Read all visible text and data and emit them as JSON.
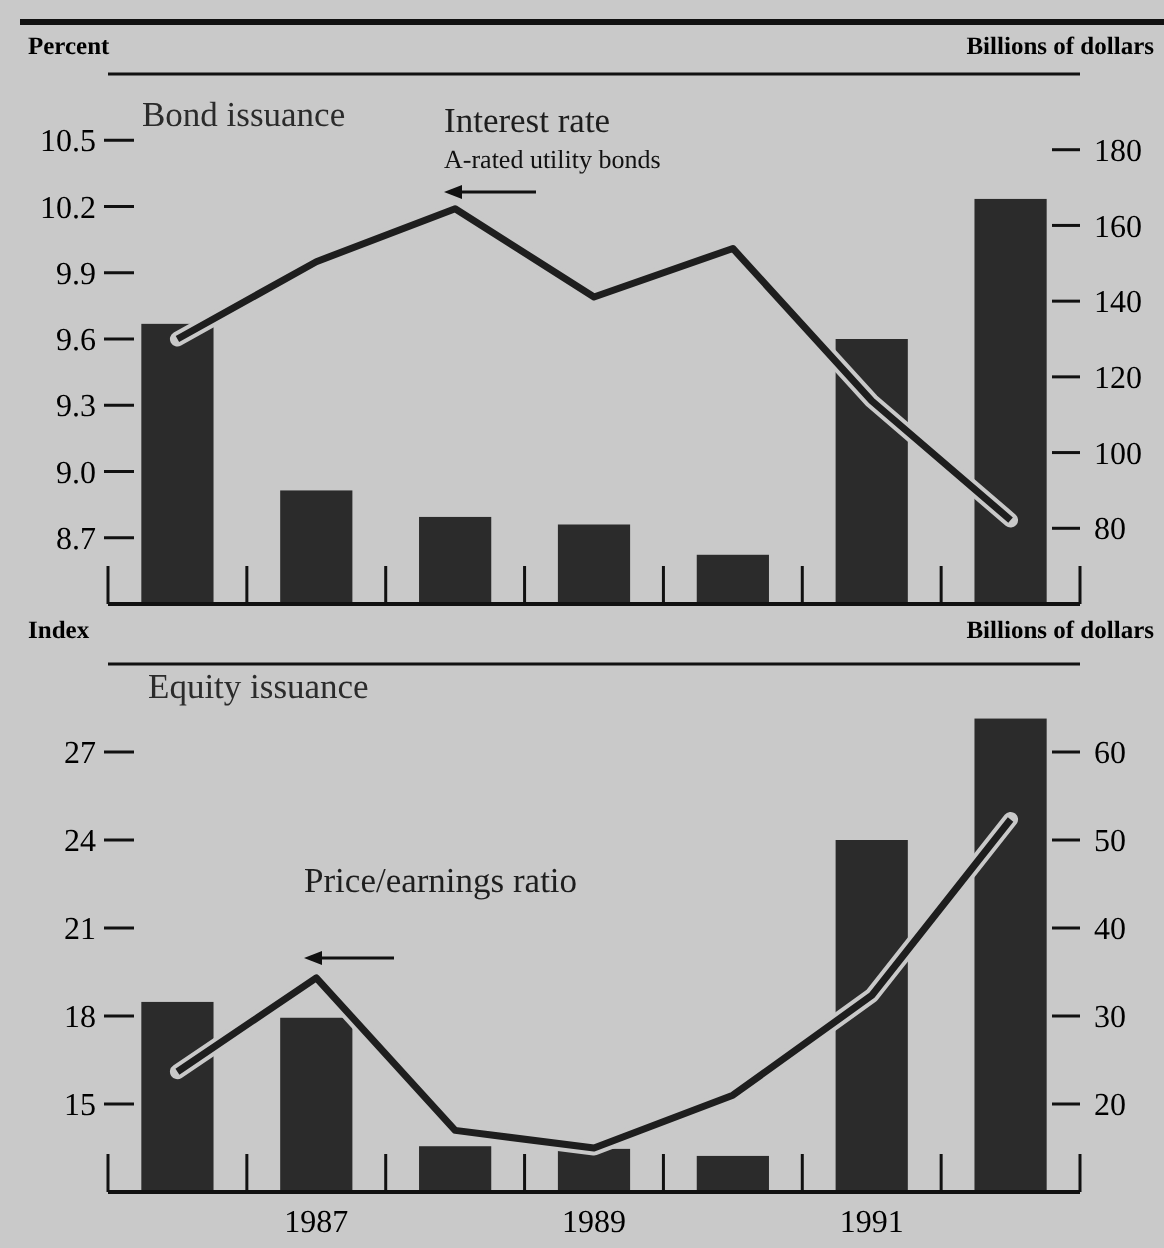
{
  "chart_data": [
    {
      "type": "bar",
      "ylabel": "Percent",
      "y2label": "Billions of dollars",
      "categories": [
        null,
        null,
        null,
        null,
        null,
        null,
        null
      ],
      "series": [
        {
          "name": "Bond issuance",
          "axis": "y2",
          "color": "#2b2b2b",
          "values": [
            134,
            90,
            83,
            81,
            73,
            130,
            167
          ]
        },
        {
          "name": "Interest rate",
          "type": "line",
          "axis": "y",
          "color": "#1e1e1e",
          "values": [
            9.6,
            9.95,
            10.19,
            9.79,
            10.01,
            9.32,
            8.78
          ]
        }
      ],
      "ylim": [
        8.4,
        10.8
      ],
      "yticks": [
        8.7,
        {
          "value": 9.0,
          "label": "9.0"
        },
        9.3,
        9.6,
        9.9,
        10.2,
        10.5
      ],
      "y2lim": [
        60,
        200
      ],
      "y2ticks": [
        80,
        100,
        120,
        140,
        160,
        180
      ],
      "annotations": [
        "A-rated utility bonds"
      ],
      "grid": false
    },
    {
      "type": "bar",
      "ylabel": "Index",
      "y2label": "Billions of dollars",
      "categories": [
        null,
        "1987",
        null,
        "1989",
        null,
        "1991",
        null
      ],
      "series": [
        {
          "name": "Equity issuance",
          "axis": "y2",
          "color": "#2b2b2b",
          "values": [
            31.6,
            29.8,
            15.2,
            14.9,
            14.1,
            50.0,
            63.8
          ]
        },
        {
          "name": "Price/earnings ratio",
          "type": "line",
          "axis": "y",
          "color": "#1e1e1e",
          "values": [
            16.1,
            19.3,
            14.1,
            13.5,
            15.3,
            18.7,
            24.7
          ]
        }
      ],
      "ylim": [
        12,
        30
      ],
      "yticks": [
        15,
        18,
        21,
        24,
        27
      ],
      "y2lim": [
        10,
        70
      ],
      "y2ticks": [
        20,
        30,
        40,
        50,
        60
      ],
      "grid": false
    }
  ]
}
